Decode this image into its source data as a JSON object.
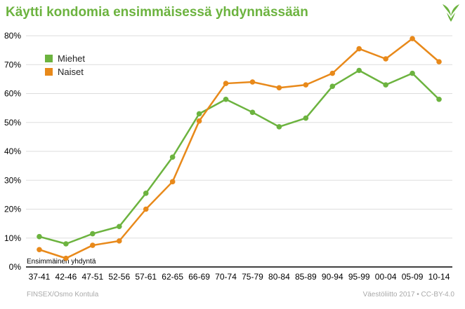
{
  "title": "Käytti kondomia ensimmäisessä yhdynnässään",
  "footer": {
    "source": "FINSEX/Osmo Kontula",
    "credit": "Väestöliitto 2017 • CC-BY-4.0"
  },
  "colors": {
    "title": "#6cb33f",
    "men": "#6cb33f",
    "women": "#e8891a",
    "axis": "#000000",
    "gridline": "#dddddd"
  },
  "logo_icon": "vaestoliitto-leaf-logo-icon",
  "chart_data": {
    "type": "line",
    "title": "Käytti kondomia ensimmäisessä yhdynnässään",
    "xlabel": "Ensimmäinen yhdyntä",
    "ylabel": "",
    "ylim": [
      0,
      80
    ],
    "yticks": [
      "0%",
      "10%",
      "20%",
      "30%",
      "40%",
      "50%",
      "60%",
      "70%",
      "80%"
    ],
    "grid": "horizontal",
    "legend_position": "top-left",
    "categories": [
      "37-41",
      "42-46",
      "47-51",
      "52-56",
      "57-61",
      "62-65",
      "66-69",
      "70-74",
      "75-79",
      "80-84",
      "85-89",
      "90-94",
      "95-99",
      "00-04",
      "05-09",
      "10-14"
    ],
    "series": [
      {
        "name": "Miehet",
        "color": "#6cb33f",
        "values": [
          10.5,
          8,
          11.5,
          14,
          25.5,
          38,
          53,
          58,
          53.5,
          48.5,
          51.5,
          62.5,
          68,
          63,
          67,
          58
        ]
      },
      {
        "name": "Naiset",
        "color": "#e8891a",
        "values": [
          6,
          3,
          7.5,
          9,
          20,
          29.5,
          50.5,
          63.5,
          64,
          62,
          63,
          67,
          75.5,
          72,
          79,
          71
        ]
      }
    ]
  }
}
